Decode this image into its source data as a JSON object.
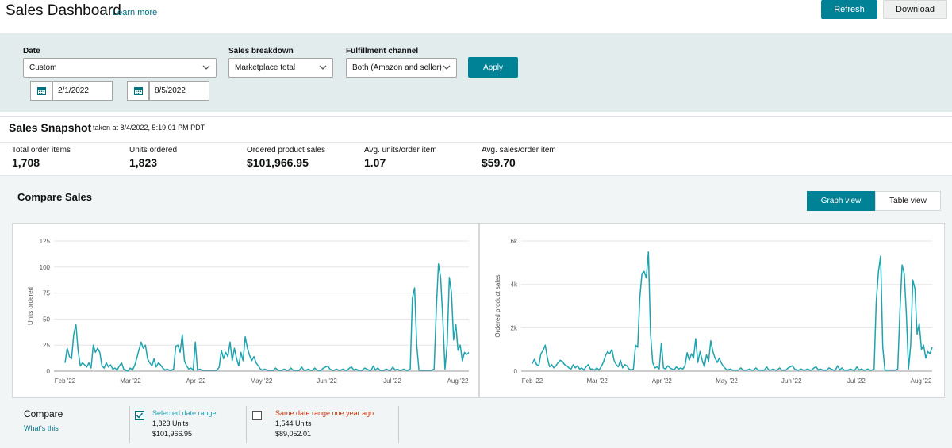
{
  "header": {
    "title": "Sales Dashboard",
    "learn_more": "Learn more",
    "refresh": "Refresh",
    "download": "Download"
  },
  "filters": {
    "date_label": "Date",
    "date_value": "Custom",
    "start_date": "2/1/2022",
    "end_date": "8/5/2022",
    "breakdown_label": "Sales breakdown",
    "breakdown_value": "Marketplace total",
    "fulfillment_label": "Fulfillment channel",
    "fulfillment_value": "Both (Amazon and seller)",
    "apply": "Apply"
  },
  "snapshot": {
    "title": "Sales Snapshot",
    "taken": "taken at 8/4/2022, 5:19:01 PM PDT",
    "metrics": [
      {
        "label": "Total order items",
        "value": "1,708"
      },
      {
        "label": "Units ordered",
        "value": "1,823"
      },
      {
        "label": "Ordered product sales",
        "value": "$101,966.95"
      },
      {
        "label": "Avg. units/order item",
        "value": "1.07"
      },
      {
        "label": "Avg. sales/order item",
        "value": "$59.70"
      }
    ]
  },
  "compare": {
    "title": "Compare Sales",
    "graph_view": "Graph view",
    "table_view": "Table view",
    "compare_label": "Compare",
    "whats_this": "What's this",
    "selected": {
      "title": "Selected date range",
      "units": "1,823 Units",
      "sales": "$101,966.95",
      "checked": true,
      "color": "#1fa3ae"
    },
    "last_year": {
      "title": "Same date range one year ago",
      "units": "1,544 Units",
      "sales": "$89,052.01",
      "checked": false,
      "color": "#d13212"
    }
  },
  "chart_data": [
    {
      "type": "line",
      "ylabel": "Units ordered",
      "xlabel": "",
      "ylim": [
        0,
        125
      ],
      "yticks": [
        0,
        25,
        50,
        75,
        100,
        125
      ],
      "ytick_labels": [
        "0",
        "25",
        "50",
        "75",
        "100",
        "125"
      ],
      "xtick_labels": [
        "Feb '22",
        "Mar '22",
        "Apr '22",
        "May '22",
        "Jun '22",
        "Jul '22",
        "Aug '22"
      ],
      "series": [
        {
          "color": "#1fa3ae",
          "values": [
            8,
            22,
            14,
            12,
            35,
            45,
            20,
            5,
            8,
            6,
            4,
            8,
            3,
            25,
            18,
            22,
            18,
            5,
            3,
            8,
            4,
            6,
            2,
            3,
            1,
            5,
            8,
            2,
            1,
            0,
            3,
            1,
            5,
            12,
            20,
            28,
            22,
            25,
            12,
            8,
            5,
            12,
            4,
            8,
            6,
            3,
            1,
            2,
            1,
            1,
            2,
            24,
            25,
            18,
            35,
            10,
            5,
            2,
            3,
            1,
            28,
            1,
            2,
            1,
            1,
            1,
            1,
            1,
            1,
            1,
            1,
            4,
            20,
            12,
            18,
            14,
            28,
            10,
            22,
            12,
            5,
            18,
            10,
            33,
            22,
            15,
            10,
            14,
            8,
            5,
            2,
            1,
            2,
            1,
            1,
            1,
            1,
            3,
            1,
            1,
            1,
            2,
            1,
            1,
            3,
            1,
            1,
            1,
            1,
            4,
            1,
            1,
            2,
            1,
            1,
            3,
            1,
            1,
            1,
            3,
            4,
            5,
            2,
            1,
            1,
            2,
            1,
            1,
            2,
            1,
            1,
            3,
            4,
            1,
            2,
            1,
            1,
            1,
            3,
            2,
            1,
            1,
            5,
            1,
            3,
            1,
            1,
            1,
            2,
            1,
            1,
            4,
            1,
            2,
            1,
            1,
            2,
            1,
            1,
            2,
            70,
            80,
            25,
            1,
            1,
            1,
            1,
            1,
            1,
            1,
            2,
            60,
            103,
            90,
            50,
            2,
            25,
            90,
            75,
            30,
            45,
            20,
            25,
            10,
            18,
            16,
            18
          ]
        }
      ]
    },
    {
      "type": "line",
      "ylabel": "Ordered product sales",
      "xlabel": "",
      "ylim": [
        0,
        6000
      ],
      "yticks": [
        0,
        2000,
        4000,
        6000
      ],
      "ytick_labels": [
        "0",
        "2k",
        "4k",
        "6k"
      ],
      "xtick_labels": [
        "Feb '22",
        "Mar '22",
        "Apr '22",
        "May '22",
        "Jun '22",
        "Jul '22",
        "Aug '22"
      ],
      "series": [
        {
          "color": "#1fa3ae",
          "values": [
            350,
            550,
            300,
            250,
            800,
            950,
            1200,
            600,
            200,
            300,
            150,
            250,
            400,
            500,
            450,
            300,
            250,
            150,
            100,
            300,
            150,
            250,
            100,
            150,
            50,
            200,
            300,
            100,
            100,
            50,
            150,
            50,
            200,
            400,
            700,
            900,
            800,
            1000,
            500,
            300,
            200,
            500,
            150,
            300,
            250,
            100,
            50,
            100,
            1200,
            1100,
            3400,
            4500,
            4600,
            4300,
            5500,
            1700,
            400,
            150,
            200,
            100,
            1300,
            150,
            100,
            250,
            150,
            100,
            50,
            200,
            100,
            150,
            100,
            250,
            850,
            500,
            800,
            600,
            1500,
            400,
            900,
            500,
            200,
            750,
            450,
            1400,
            900,
            600,
            400,
            600,
            350,
            200,
            100,
            50,
            100,
            50,
            50,
            50,
            50,
            150,
            50,
            50,
            50,
            100,
            50,
            50,
            150,
            50,
            50,
            50,
            50,
            200,
            50,
            50,
            100,
            50,
            50,
            150,
            50,
            50,
            50,
            150,
            200,
            250,
            100,
            50,
            50,
            100,
            50,
            50,
            100,
            50,
            50,
            150,
            200,
            50,
            100,
            50,
            50,
            50,
            150,
            100,
            50,
            50,
            250,
            50,
            150,
            50,
            50,
            50,
            100,
            50,
            50,
            200,
            50,
            100,
            50,
            50,
            100,
            50,
            50,
            100,
            3200,
            4600,
            5300,
            1100,
            50,
            50,
            50,
            50,
            50,
            50,
            100,
            2800,
            4900,
            4500,
            2600,
            100,
            1200,
            4200,
            3800,
            1700,
            2200,
            1000,
            1200,
            600,
            900,
            800,
            1100
          ]
        }
      ]
    }
  ]
}
